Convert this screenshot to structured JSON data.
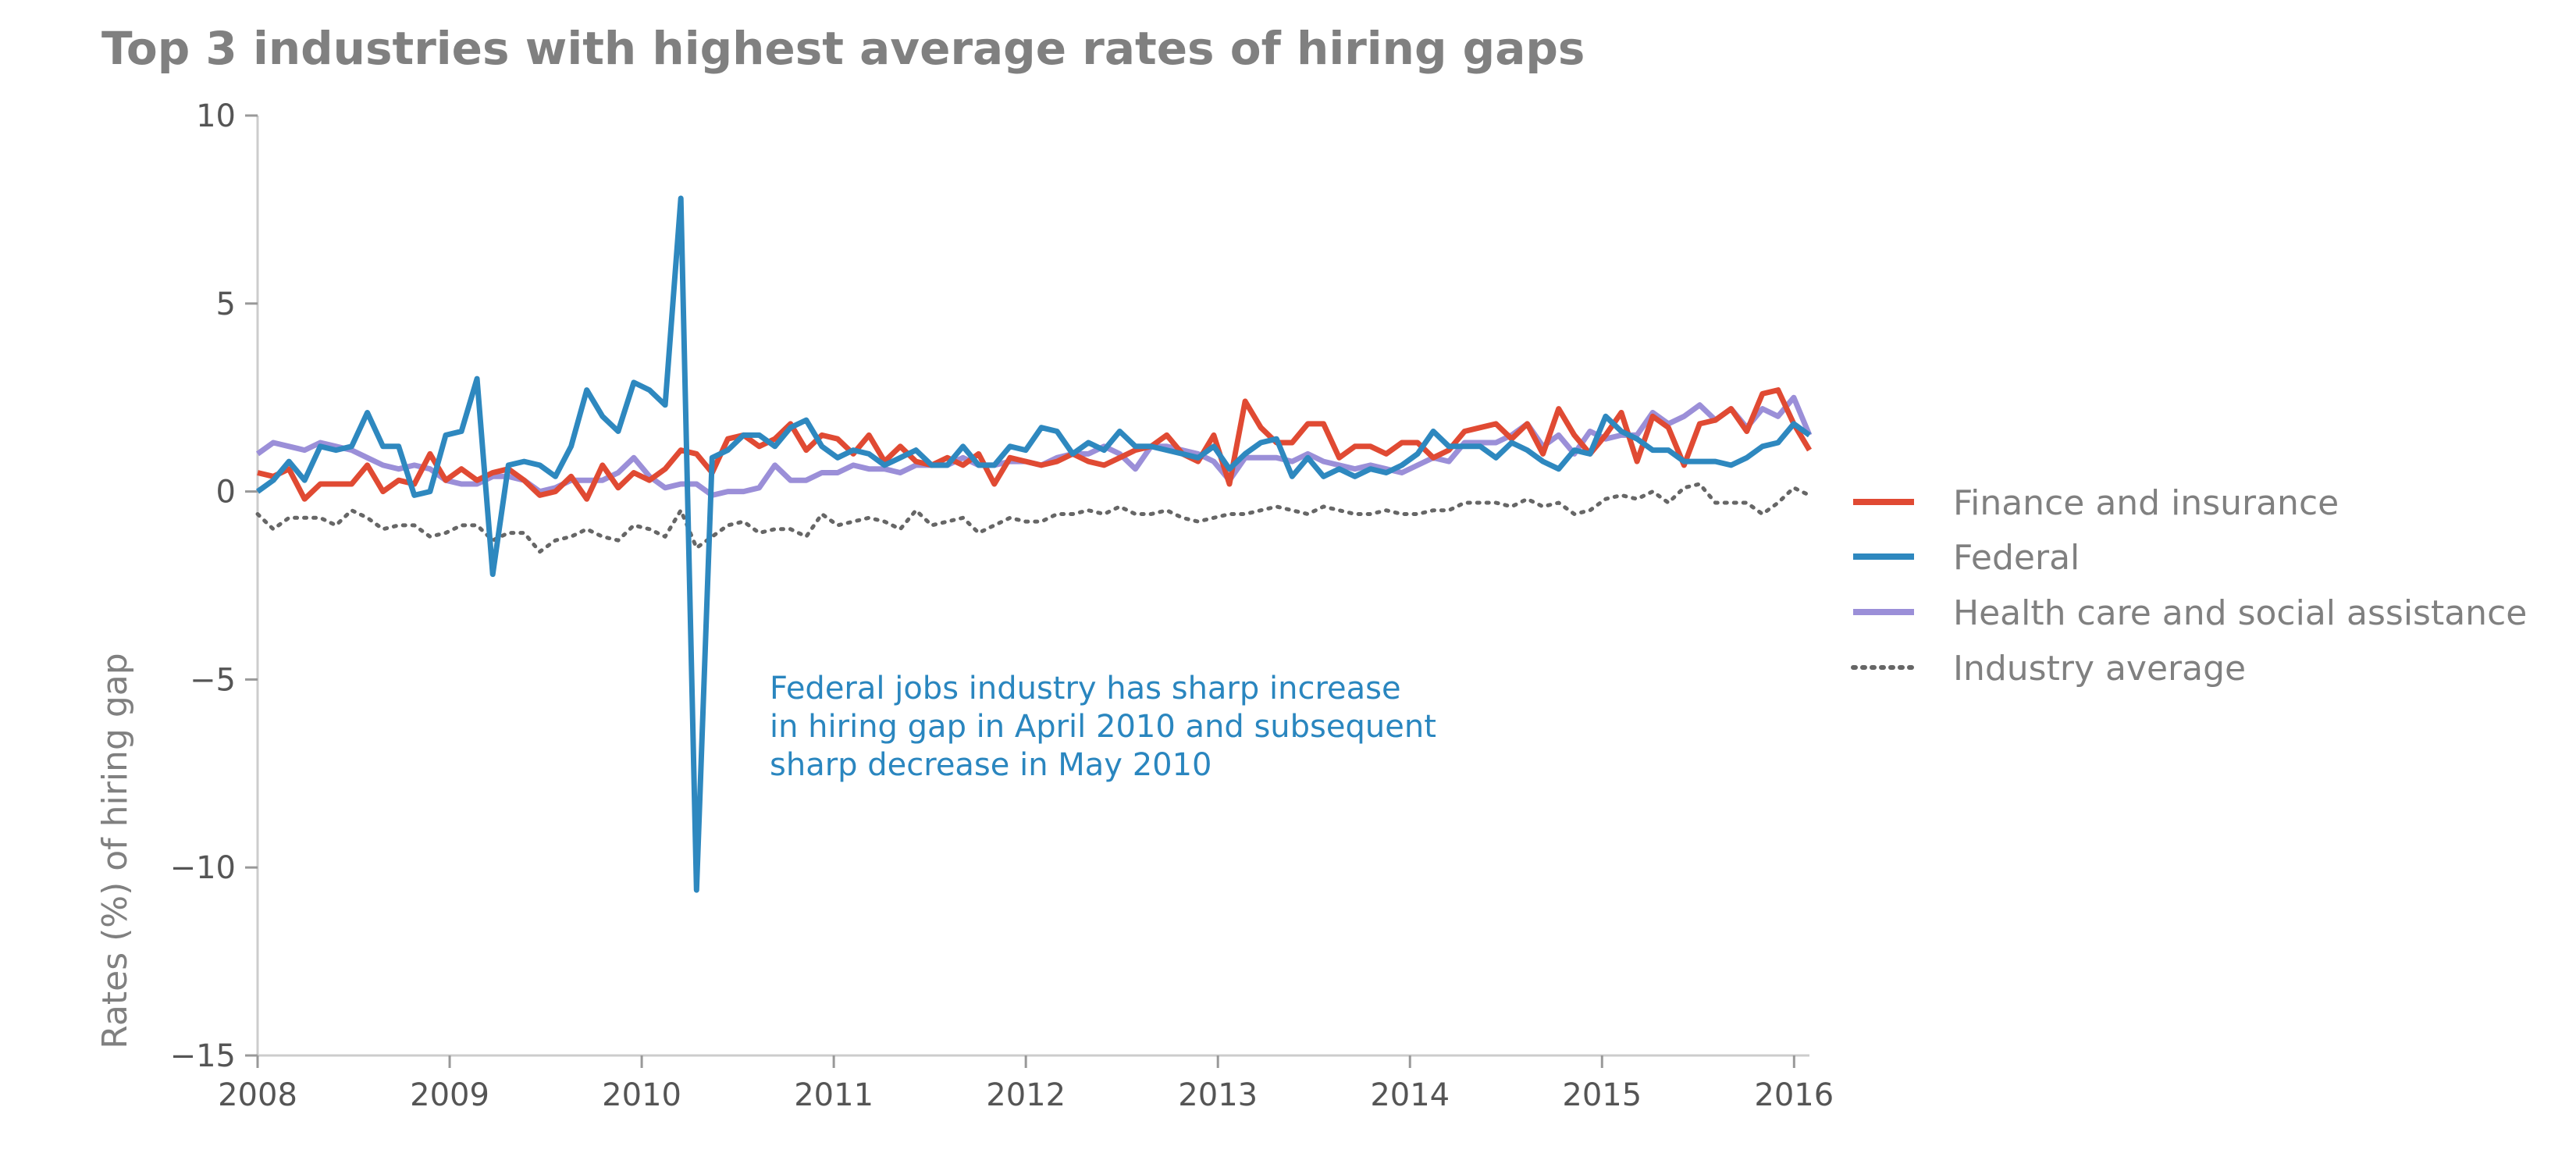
{
  "chart_data": {
    "type": "line",
    "title": "Top 3 industries with highest average rates of hiring gaps",
    "xlabel": "",
    "ylabel": "Rates (%) of hiring gap",
    "xlim": [
      2008,
      2016.08
    ],
    "ylim": [
      -15,
      10
    ],
    "x_ticks": [
      2008,
      2009,
      2010,
      2011,
      2012,
      2013,
      2014,
      2015,
      2016
    ],
    "y_ticks": [
      10,
      5,
      0,
      -5,
      -10,
      -15
    ],
    "y_tick_labels": [
      "10",
      "5",
      "0",
      "−5",
      "−10",
      "−15"
    ],
    "grid": false,
    "legend_position": "right",
    "series": [
      {
        "name": "Finance and insurance",
        "color": "#e04a33",
        "style": "solid",
        "values": [
          0.5,
          0.4,
          0.6,
          -0.2,
          0.2,
          0.2,
          0.2,
          0.7,
          0.0,
          0.3,
          0.2,
          1.0,
          0.3,
          0.6,
          0.3,
          0.5,
          0.6,
          0.3,
          -0.1,
          0.0,
          0.4,
          -0.2,
          0.7,
          0.1,
          0.5,
          0.3,
          0.6,
          1.1,
          1.0,
          0.5,
          1.4,
          1.5,
          1.2,
          1.4,
          1.8,
          1.1,
          1.5,
          1.4,
          1.0,
          1.5,
          0.8,
          1.2,
          0.8,
          0.7,
          0.9,
          0.7,
          1.0,
          0.2,
          0.9,
          0.8,
          0.7,
          0.8,
          1.0,
          0.8,
          0.7,
          0.9,
          1.1,
          1.2,
          1.5,
          1.0,
          0.8,
          1.5,
          0.2,
          2.4,
          1.7,
          1.3,
          1.3,
          1.8,
          1.8,
          0.9,
          1.2,
          1.2,
          1.0,
          1.3,
          1.3,
          0.9,
          1.1,
          1.6,
          1.7,
          1.8,
          1.4,
          1.8,
          1.0,
          2.2,
          1.5,
          1.0,
          1.5,
          2.1,
          0.8,
          2.0,
          1.7,
          0.7,
          1.8,
          1.9,
          2.2,
          1.6,
          2.6,
          2.7,
          1.8,
          1.1
        ]
      },
      {
        "name": "Federal",
        "color": "#2e88bf",
        "style": "solid",
        "values": [
          0.0,
          0.3,
          0.8,
          0.3,
          1.2,
          1.1,
          1.2,
          2.1,
          1.2,
          1.2,
          -0.1,
          0.0,
          1.5,
          1.6,
          3.0,
          -2.2,
          0.7,
          0.8,
          0.7,
          0.4,
          1.2,
          2.7,
          2.0,
          1.6,
          2.9,
          2.7,
          2.3,
          7.8,
          -10.6,
          0.9,
          1.1,
          1.5,
          1.5,
          1.2,
          1.7,
          1.9,
          1.2,
          0.9,
          1.1,
          1.0,
          0.7,
          0.9,
          1.1,
          0.7,
          0.7,
          1.2,
          0.7,
          0.7,
          1.2,
          1.1,
          1.7,
          1.6,
          1.0,
          1.3,
          1.1,
          1.6,
          1.2,
          1.2,
          1.1,
          1.0,
          0.9,
          1.2,
          0.6,
          1.0,
          1.3,
          1.4,
          0.4,
          0.9,
          0.4,
          0.6,
          0.4,
          0.6,
          0.5,
          0.7,
          1.0,
          1.6,
          1.2,
          1.2,
          1.2,
          0.9,
          1.3,
          1.1,
          0.8,
          0.6,
          1.1,
          1.0,
          2.0,
          1.6,
          1.4,
          1.1,
          1.1,
          0.8,
          0.8,
          0.8,
          0.7,
          0.9,
          1.2,
          1.3,
          1.8,
          1.5
        ]
      },
      {
        "name": "Health care and social assistance",
        "color": "#9b8fd8",
        "style": "solid",
        "values": [
          1.0,
          1.3,
          1.2,
          1.1,
          1.3,
          1.2,
          1.1,
          0.9,
          0.7,
          0.6,
          0.7,
          0.6,
          0.3,
          0.2,
          0.2,
          0.4,
          0.4,
          0.3,
          0.0,
          0.1,
          0.3,
          0.3,
          0.3,
          0.5,
          0.9,
          0.4,
          0.1,
          0.2,
          0.2,
          -0.1,
          0.0,
          0.0,
          0.1,
          0.7,
          0.3,
          0.3,
          0.5,
          0.5,
          0.7,
          0.6,
          0.6,
          0.5,
          0.7,
          0.7,
          0.7,
          0.9,
          0.7,
          0.7,
          0.8,
          0.8,
          0.7,
          0.9,
          1.0,
          1.0,
          1.2,
          1.0,
          0.6,
          1.2,
          1.2,
          1.1,
          1.0,
          0.8,
          0.3,
          0.9,
          0.9,
          0.9,
          0.8,
          1.0,
          0.8,
          0.7,
          0.6,
          0.7,
          0.6,
          0.5,
          0.7,
          0.9,
          0.8,
          1.3,
          1.3,
          1.3,
          1.5,
          1.8,
          1.2,
          1.5,
          1.0,
          1.6,
          1.4,
          1.5,
          1.5,
          2.1,
          1.8,
          2.0,
          2.3,
          1.9,
          2.2,
          1.7,
          2.2,
          2.0,
          2.5,
          1.5
        ]
      },
      {
        "name": "Industry average",
        "color": "#666666",
        "style": "dotted",
        "values": [
          -0.6,
          -1.0,
          -0.7,
          -0.7,
          -0.7,
          -0.9,
          -0.5,
          -0.7,
          -1.0,
          -0.9,
          -0.9,
          -1.2,
          -1.1,
          -0.9,
          -0.9,
          -1.3,
          -1.1,
          -1.1,
          -1.6,
          -1.3,
          -1.2,
          -1.0,
          -1.2,
          -1.3,
          -0.9,
          -1.0,
          -1.2,
          -0.5,
          -1.5,
          -1.2,
          -0.9,
          -0.8,
          -1.1,
          -1.0,
          -1.0,
          -1.2,
          -0.6,
          -0.9,
          -0.8,
          -0.7,
          -0.8,
          -1.0,
          -0.5,
          -0.9,
          -0.8,
          -0.7,
          -1.1,
          -0.9,
          -0.7,
          -0.8,
          -0.8,
          -0.6,
          -0.6,
          -0.5,
          -0.6,
          -0.4,
          -0.6,
          -0.6,
          -0.5,
          -0.7,
          -0.8,
          -0.7,
          -0.6,
          -0.6,
          -0.5,
          -0.4,
          -0.5,
          -0.6,
          -0.4,
          -0.5,
          -0.6,
          -0.6,
          -0.5,
          -0.6,
          -0.6,
          -0.5,
          -0.5,
          -0.3,
          -0.3,
          -0.3,
          -0.4,
          -0.2,
          -0.4,
          -0.3,
          -0.6,
          -0.5,
          -0.2,
          -0.1,
          -0.2,
          0.0,
          -0.3,
          0.1,
          0.2,
          -0.3,
          -0.3,
          -0.3,
          -0.6,
          -0.3,
          0.1,
          -0.1
        ]
      }
    ],
    "annotation": {
      "lines": [
        "Federal jobs industry has sharp increase",
        "in hiring gap in April 2010 and subsequent",
        "sharp decrease in May 2010"
      ],
      "color": "#2a86bf"
    }
  }
}
